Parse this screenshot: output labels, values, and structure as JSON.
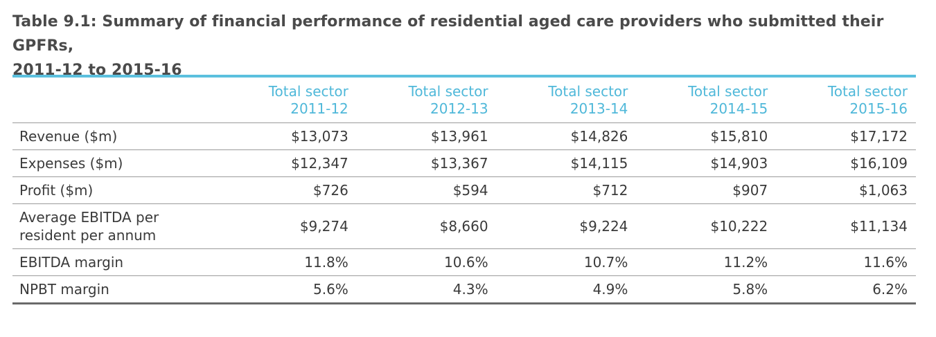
{
  "caption": {
    "line1": "Table 9.1: Summary of financial performance of residential aged care providers who submitted their GPFRs,",
    "line2": "2011-12 to 2015-16"
  },
  "table": {
    "columns": [
      {
        "line1": "Total sector",
        "line2": "2011-12"
      },
      {
        "line1": "Total sector",
        "line2": "2012-13"
      },
      {
        "line1": "Total sector",
        "line2": "2013-14"
      },
      {
        "line1": "Total sector",
        "line2": "2014-15"
      },
      {
        "line1": "Total sector",
        "line2": "2015-16"
      }
    ],
    "rows": [
      {
        "label_line1": "Revenue ($m)",
        "label_line2": "",
        "values": [
          "$13,073",
          "$13,961",
          "$14,826",
          "$15,810",
          "$17,172"
        ]
      },
      {
        "label_line1": "Expenses ($m)",
        "label_line2": "",
        "values": [
          "$12,347",
          "$13,367",
          "$14,115",
          "$14,903",
          "$16,109"
        ]
      },
      {
        "label_line1": "Profit ($m)",
        "label_line2": "",
        "values": [
          "$726",
          "$594",
          "$712",
          "$907",
          "$1,063"
        ]
      },
      {
        "label_line1": "Average EBITDA per",
        "label_line2": "resident per annum",
        "values": [
          "$9,274",
          "$8,660",
          "$9,224",
          "$10,222",
          "$11,134"
        ]
      },
      {
        "label_line1": "EBITDA margin",
        "label_line2": "",
        "values": [
          "11.8%",
          "10.6%",
          "10.7%",
          "11.2%",
          "11.6%"
        ]
      },
      {
        "label_line1": "NPBT margin",
        "label_line2": "",
        "values": [
          "5.6%",
          "4.3%",
          "4.9%",
          "5.8%",
          "6.2%"
        ]
      }
    ]
  },
  "colors": {
    "accent": "#5bc0de",
    "header_text": "#4fb8d9",
    "body_text": "#3a3a3a",
    "rule": "#9a9a9a"
  }
}
